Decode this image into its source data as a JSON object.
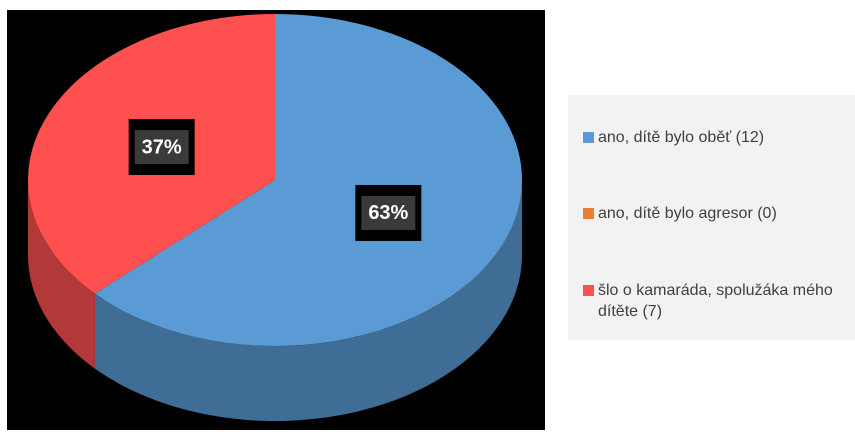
{
  "chart_data": {
    "type": "pie3d",
    "categories": [
      "ano, dítě bylo oběť (12)",
      "ano, dítě bylo agresor (0)",
      "šlo o kamaráda, spolužáka mého dítěte (7)"
    ],
    "values": [
      63,
      0,
      37
    ],
    "value_labels": [
      "63%",
      null,
      "37%"
    ],
    "colors": [
      "#5b9bd5",
      "#ed7d31",
      "#ff5050"
    ],
    "legend": "right"
  }
}
